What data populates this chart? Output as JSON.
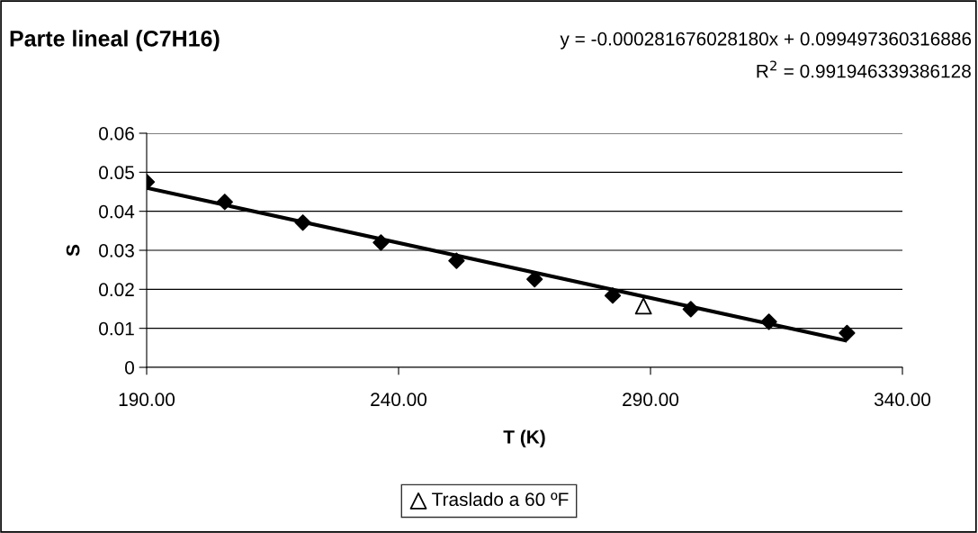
{
  "chart_data": {
    "type": "scatter",
    "title": "Parte lineal (C7H16)",
    "annotations": [
      "y = -0.000281676028180x + 0.099497360316886",
      "R$^{2}$ = 0.991946339386128"
    ],
    "xlabel": "T (K)",
    "ylabel": "S",
    "series": [
      {
        "marker": "diamond",
        "color": "#000000",
        "x": [
          190,
          205.5,
          221,
          236.5,
          251.5,
          267,
          282.5,
          298,
          313.5,
          329
        ],
        "values": [
          0.0475,
          0.0424,
          0.0371,
          0.032,
          0.0273,
          0.0226,
          0.0184,
          0.0149,
          0.0117,
          0.0088
        ]
      },
      {
        "marker": "triangle",
        "name": "Traslado a 60 ºF",
        "color": "#000000",
        "x": [
          288.6
        ],
        "values": [
          0.0157
        ]
      },
      {
        "type": "line",
        "marker": "none",
        "color": "#000000",
        "x": [
          190,
          329
        ],
        "values": [
          0.046,
          0.0068
        ]
      }
    ],
    "xlim": [
      190,
      340
    ],
    "ylim": [
      0,
      0.06
    ],
    "xticks": [
      {
        "value": 190,
        "label": "190.00"
      },
      {
        "value": 240,
        "label": "240.00"
      },
      {
        "value": 290,
        "label": "290.00"
      },
      {
        "value": 340,
        "label": "340.00"
      }
    ],
    "yticks": [
      0,
      0.01,
      0.02,
      0.03,
      0.04,
      0.05,
      0.06
    ],
    "grid": "y",
    "legend": "bottom"
  }
}
